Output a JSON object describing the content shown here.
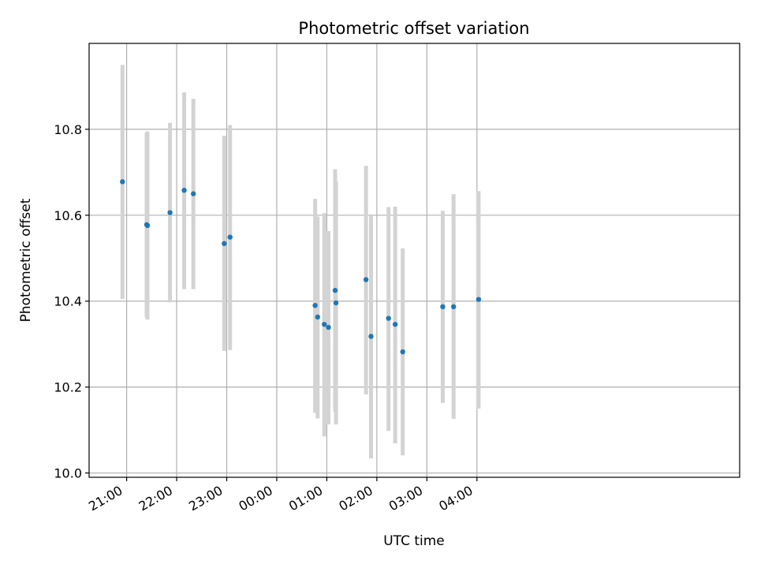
{
  "chart_data": {
    "type": "scatter",
    "title": "Photometric offset variation",
    "xlabel": "UTC time",
    "ylabel": "Photometric offset",
    "xlim_minutes_after_2100": [
      -45,
      735
    ],
    "ylim": [
      9.99,
      11.0
    ],
    "xticks": [
      {
        "label": "21:00",
        "minutes_after_2100": 0
      },
      {
        "label": "22:00",
        "minutes_after_2100": 60
      },
      {
        "label": "23:00",
        "minutes_after_2100": 120
      },
      {
        "label": "00:00",
        "minutes_after_2100": 180
      },
      {
        "label": "01:00",
        "minutes_after_2100": 240
      },
      {
        "label": "02:00",
        "minutes_after_2100": 300
      },
      {
        "label": "03:00",
        "minutes_after_2100": 360
      },
      {
        "label": "04:00",
        "minutes_after_2100": 420
      }
    ],
    "yticks": [
      {
        "label": "10.0",
        "value": 10.0
      },
      {
        "label": "10.2",
        "value": 10.2
      },
      {
        "label": "10.4",
        "value": 10.4
      },
      {
        "label": "10.6",
        "value": 10.6
      },
      {
        "label": "10.8",
        "value": 10.8
      }
    ],
    "grid": true,
    "colors": {
      "marker": "#1f77b4",
      "errorbar": "#d3d3d3",
      "grid": "#b0b0b0"
    },
    "points": [
      {
        "time": "20:55",
        "y": 10.678,
        "ylow": 10.405,
        "yhigh": 10.95
      },
      {
        "time": "21:24",
        "y": 10.578,
        "ylow": 10.362,
        "yhigh": 10.792
      },
      {
        "time": "21:25",
        "y": 10.576,
        "ylow": 10.357,
        "yhigh": 10.795
      },
      {
        "time": "21:52",
        "y": 10.606,
        "ylow": 10.397,
        "yhigh": 10.815
      },
      {
        "time": "22:09",
        "y": 10.658,
        "ylow": 10.428,
        "yhigh": 10.886
      },
      {
        "time": "22:20",
        "y": 10.65,
        "ylow": 10.428,
        "yhigh": 10.871
      },
      {
        "time": "22:57",
        "y": 10.534,
        "ylow": 10.284,
        "yhigh": 10.785
      },
      {
        "time": "23:04",
        "y": 10.549,
        "ylow": 10.286,
        "yhigh": 10.81
      },
      {
        "time": "00:46",
        "y": 10.39,
        "ylow": 10.14,
        "yhigh": 10.638
      },
      {
        "time": "00:49",
        "y": 10.363,
        "ylow": 10.127,
        "yhigh": 10.597
      },
      {
        "time": "00:57",
        "y": 10.346,
        "ylow": 10.085,
        "yhigh": 10.605
      },
      {
        "time": "01:02",
        "y": 10.339,
        "ylow": 10.113,
        "yhigh": 10.563
      },
      {
        "time": "01:10",
        "y": 10.425,
        "ylow": 10.143,
        "yhigh": 10.707
      },
      {
        "time": "01:11",
        "y": 10.396,
        "ylow": 10.113,
        "yhigh": 10.678
      },
      {
        "time": "01:47",
        "y": 10.45,
        "ylow": 10.183,
        "yhigh": 10.715
      },
      {
        "time": "01:53",
        "y": 10.318,
        "ylow": 10.034,
        "yhigh": 10.6
      },
      {
        "time": "02:14",
        "y": 10.36,
        "ylow": 10.098,
        "yhigh": 10.619
      },
      {
        "time": "02:22",
        "y": 10.346,
        "ylow": 10.069,
        "yhigh": 10.62
      },
      {
        "time": "02:31",
        "y": 10.282,
        "ylow": 10.041,
        "yhigh": 10.523
      },
      {
        "time": "03:19",
        "y": 10.387,
        "ylow": 10.163,
        "yhigh": 10.61
      },
      {
        "time": "03:32",
        "y": 10.387,
        "ylow": 10.126,
        "yhigh": 10.649
      },
      {
        "time": "04:02",
        "y": 10.404,
        "ylow": 10.15,
        "yhigh": 10.656
      }
    ]
  }
}
